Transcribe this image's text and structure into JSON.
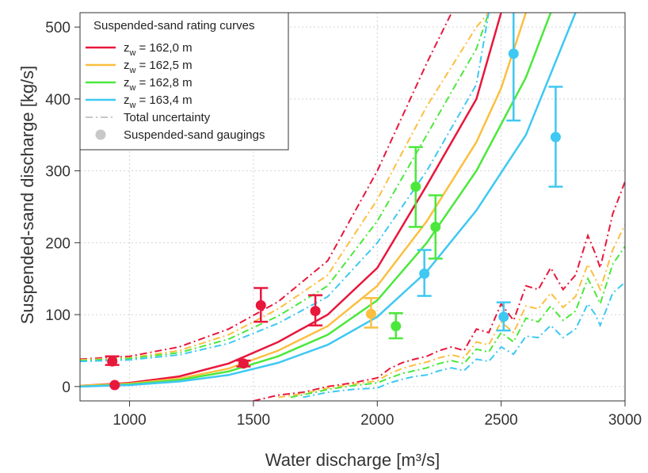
{
  "chart_data": {
    "type": "line",
    "xlabel": "Water discharge [m³/s]",
    "ylabel": "Suspended-sand discharge [kg/s]",
    "xlim": [
      800,
      3000
    ],
    "ylim": [
      -20,
      520
    ],
    "x_ticks": [
      "1000",
      "1500",
      "2000",
      "2500",
      "3000"
    ],
    "y_ticks": [
      "0",
      "100",
      "200",
      "300",
      "400",
      "500"
    ],
    "grid": true,
    "legend": {
      "placement": "top-left",
      "title": "Suspended-sand rating curves",
      "series_label_prefix": "z",
      "series_label_subscript": "w",
      "uncertainty_label": "Total uncertainty",
      "gaugings_label": "Suspended-sand gaugings"
    },
    "series": [
      {
        "name": "= 162,0 m",
        "color": "#e8173c",
        "curve": [
          [
            800,
            1
          ],
          [
            1000,
            5
          ],
          [
            1200,
            14
          ],
          [
            1400,
            32
          ],
          [
            1600,
            62
          ],
          [
            1800,
            100
          ],
          [
            2000,
            165
          ],
          [
            2200,
            280
          ],
          [
            2400,
            400
          ],
          [
            2500,
            520
          ]
        ],
        "upper": [
          [
            800,
            38
          ],
          [
            1000,
            42
          ],
          [
            1200,
            55
          ],
          [
            1400,
            80
          ],
          [
            1600,
            118
          ],
          [
            1800,
            175
          ],
          [
            2000,
            300
          ],
          [
            2200,
            450
          ],
          [
            2300,
            520
          ]
        ],
        "lower": [
          [
            1500,
            -20
          ],
          [
            1600,
            -12
          ],
          [
            1700,
            -8
          ],
          [
            1800,
            0
          ],
          [
            1900,
            5
          ],
          [
            2000,
            12
          ],
          [
            2050,
            25
          ],
          [
            2100,
            33
          ],
          [
            2150,
            38
          ],
          [
            2200,
            42
          ],
          [
            2250,
            50
          ],
          [
            2300,
            55
          ],
          [
            2350,
            50
          ],
          [
            2400,
            80
          ],
          [
            2450,
            75
          ],
          [
            2500,
            115
          ],
          [
            2550,
            92
          ],
          [
            2600,
            140
          ],
          [
            2650,
            135
          ],
          [
            2700,
            165
          ],
          [
            2750,
            135
          ],
          [
            2800,
            155
          ],
          [
            2850,
            210
          ],
          [
            2880,
            185
          ],
          [
            2900,
            165
          ],
          [
            2950,
            240
          ],
          [
            3000,
            285
          ]
        ],
        "gaugings": [
          {
            "x": 930,
            "y": 35,
            "low": 30,
            "high": 42
          },
          {
            "x": 940,
            "y": 2,
            "low": null,
            "high": null
          },
          {
            "x": 1460,
            "y": 32,
            "low": 28,
            "high": 36
          },
          {
            "x": 1530,
            "y": 113,
            "low": 90,
            "high": 137
          },
          {
            "x": 1750,
            "y": 105,
            "low": 85,
            "high": 127
          }
        ]
      },
      {
        "name": "= 162,5 m",
        "color": "#fbbf40",
        "curve": [
          [
            800,
            1
          ],
          [
            1000,
            4
          ],
          [
            1200,
            11
          ],
          [
            1400,
            25
          ],
          [
            1600,
            50
          ],
          [
            1800,
            84
          ],
          [
            2000,
            140
          ],
          [
            2200,
            230
          ],
          [
            2400,
            340
          ],
          [
            2500,
            415
          ],
          [
            2600,
            520
          ]
        ],
        "upper": [
          [
            800,
            37
          ],
          [
            1000,
            40
          ],
          [
            1200,
            50
          ],
          [
            1400,
            72
          ],
          [
            1600,
            108
          ],
          [
            1800,
            155
          ],
          [
            2000,
            260
          ],
          [
            2200,
            390
          ],
          [
            2400,
            500
          ],
          [
            2450,
            520
          ]
        ],
        "lower": [
          [
            1600,
            -15
          ],
          [
            1700,
            -10
          ],
          [
            1800,
            -2
          ],
          [
            1900,
            3
          ],
          [
            2000,
            8
          ],
          [
            2050,
            18
          ],
          [
            2100,
            25
          ],
          [
            2150,
            30
          ],
          [
            2200,
            34
          ],
          [
            2250,
            40
          ],
          [
            2300,
            44
          ],
          [
            2350,
            40
          ],
          [
            2400,
            62
          ],
          [
            2450,
            58
          ],
          [
            2500,
            90
          ],
          [
            2550,
            75
          ],
          [
            2600,
            112
          ],
          [
            2650,
            108
          ],
          [
            2700,
            130
          ],
          [
            2750,
            110
          ],
          [
            2800,
            125
          ],
          [
            2850,
            170
          ],
          [
            2880,
            150
          ],
          [
            2900,
            135
          ],
          [
            2950,
            190
          ],
          [
            3000,
            225
          ]
        ],
        "gaugings": [
          {
            "x": 1975,
            "y": 101,
            "low": 82,
            "high": 123
          }
        ]
      },
      {
        "name": "= 162,8 m",
        "color": "#4be83c",
        "curve": [
          [
            800,
            0
          ],
          [
            1000,
            3
          ],
          [
            1200,
            9
          ],
          [
            1400,
            21
          ],
          [
            1600,
            42
          ],
          [
            1800,
            72
          ],
          [
            2000,
            120
          ],
          [
            2200,
            200
          ],
          [
            2400,
            300
          ],
          [
            2600,
            430
          ],
          [
            2700,
            520
          ]
        ],
        "upper": [
          [
            800,
            36
          ],
          [
            1000,
            39
          ],
          [
            1200,
            47
          ],
          [
            1400,
            66
          ],
          [
            1600,
            98
          ],
          [
            1800,
            140
          ],
          [
            2000,
            230
          ],
          [
            2200,
            350
          ],
          [
            2400,
            470
          ],
          [
            2450,
            520
          ]
        ],
        "lower": [
          [
            1650,
            -15
          ],
          [
            1750,
            -8
          ],
          [
            1800,
            -4
          ],
          [
            1900,
            1
          ],
          [
            2000,
            5
          ],
          [
            2050,
            12
          ],
          [
            2100,
            18
          ],
          [
            2150,
            22
          ],
          [
            2200,
            26
          ],
          [
            2250,
            32
          ],
          [
            2300,
            36
          ],
          [
            2350,
            32
          ],
          [
            2400,
            52
          ],
          [
            2450,
            48
          ],
          [
            2500,
            75
          ],
          [
            2550,
            62
          ],
          [
            2600,
            95
          ],
          [
            2650,
            90
          ],
          [
            2700,
            112
          ],
          [
            2750,
            92
          ],
          [
            2800,
            105
          ],
          [
            2850,
            150
          ],
          [
            2880,
            130
          ],
          [
            2900,
            115
          ],
          [
            2950,
            170
          ],
          [
            3000,
            195
          ]
        ],
        "gaugings": [
          {
            "x": 2075,
            "y": 84,
            "low": 67,
            "high": 102
          },
          {
            "x": 2155,
            "y": 278,
            "low": 222,
            "high": 333
          },
          {
            "x": 2235,
            "y": 222,
            "low": 178,
            "high": 266
          }
        ]
      },
      {
        "name": "= 163,4 m",
        "color": "#3fc8f2",
        "curve": [
          [
            800,
            0
          ],
          [
            1000,
            2
          ],
          [
            1200,
            7
          ],
          [
            1400,
            16
          ],
          [
            1600,
            33
          ],
          [
            1800,
            58
          ],
          [
            2000,
            97
          ],
          [
            2200,
            160
          ],
          [
            2400,
            245
          ],
          [
            2600,
            350
          ],
          [
            2800,
            520
          ]
        ],
        "upper": [
          [
            800,
            35
          ],
          [
            1000,
            37
          ],
          [
            1200,
            44
          ],
          [
            1400,
            60
          ],
          [
            1600,
            88
          ],
          [
            1800,
            125
          ],
          [
            2000,
            200
          ],
          [
            2200,
            300
          ],
          [
            2400,
            420
          ],
          [
            2450,
            520
          ]
        ],
        "lower": [
          [
            1700,
            -15
          ],
          [
            1800,
            -8
          ],
          [
            1900,
            -4
          ],
          [
            2000,
            -2
          ],
          [
            2050,
            5
          ],
          [
            2100,
            10
          ],
          [
            2150,
            14
          ],
          [
            2200,
            16
          ],
          [
            2250,
            22
          ],
          [
            2300,
            26
          ],
          [
            2350,
            22
          ],
          [
            2400,
            38
          ],
          [
            2450,
            35
          ],
          [
            2500,
            55
          ],
          [
            2550,
            45
          ],
          [
            2600,
            70
          ],
          [
            2650,
            68
          ],
          [
            2700,
            85
          ],
          [
            2750,
            68
          ],
          [
            2800,
            80
          ],
          [
            2850,
            115
          ],
          [
            2880,
            100
          ],
          [
            2900,
            85
          ],
          [
            2950,
            130
          ],
          [
            3000,
            145
          ]
        ],
        "gaugings": [
          {
            "x": 2190,
            "y": 157,
            "low": 126,
            "high": 190
          },
          {
            "x": 2510,
            "y": 97,
            "low": 78,
            "high": 117
          },
          {
            "x": 2550,
            "y": 463,
            "low": 370,
            "high": 560
          },
          {
            "x": 2720,
            "y": 347,
            "low": 278,
            "high": 417
          }
        ]
      }
    ]
  }
}
